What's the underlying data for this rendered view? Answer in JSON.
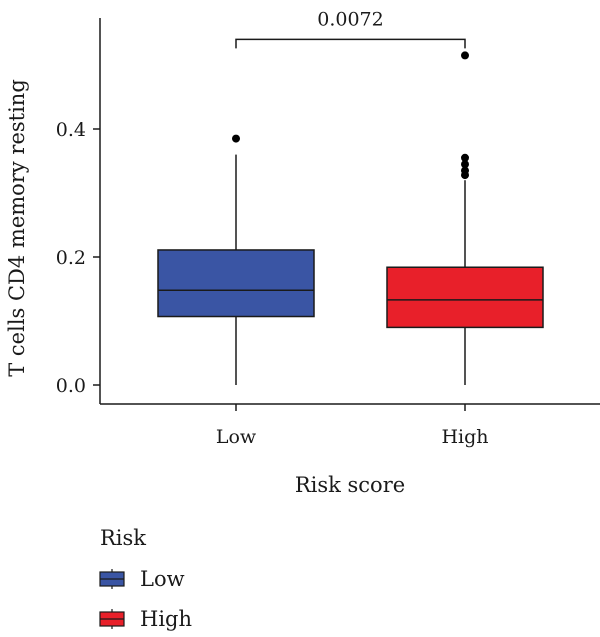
{
  "chart_data": {
    "type": "box",
    "title": "",
    "xlabel": "Risk score",
    "ylabel": "T cells CD4 memory resting",
    "ylim": [
      -0.02,
      0.58
    ],
    "yticks": [
      0.0,
      0.2,
      0.4
    ],
    "ytick_labels": [
      "0.0",
      "0.2",
      "0.4"
    ],
    "categories": [
      "Low",
      "High"
    ],
    "series": [
      {
        "name": "Low",
        "color": "#3a55a4",
        "whisker_low": 0.0,
        "q1": 0.107,
        "median": 0.148,
        "q3": 0.211,
        "whisker_high": 0.36,
        "outliers": [
          0.385
        ]
      },
      {
        "name": "High",
        "color": "#e8202a",
        "whisker_low": 0.0,
        "q1": 0.09,
        "median": 0.133,
        "q3": 0.184,
        "whisker_high": 0.32,
        "outliers": [
          0.515,
          0.355,
          0.345,
          0.335,
          0.328
        ]
      }
    ],
    "comparison": {
      "label": "0.0072",
      "y": 0.54
    },
    "legend": {
      "title": "Risk",
      "position": "bottom-left",
      "items": [
        "Low",
        "High"
      ]
    }
  }
}
